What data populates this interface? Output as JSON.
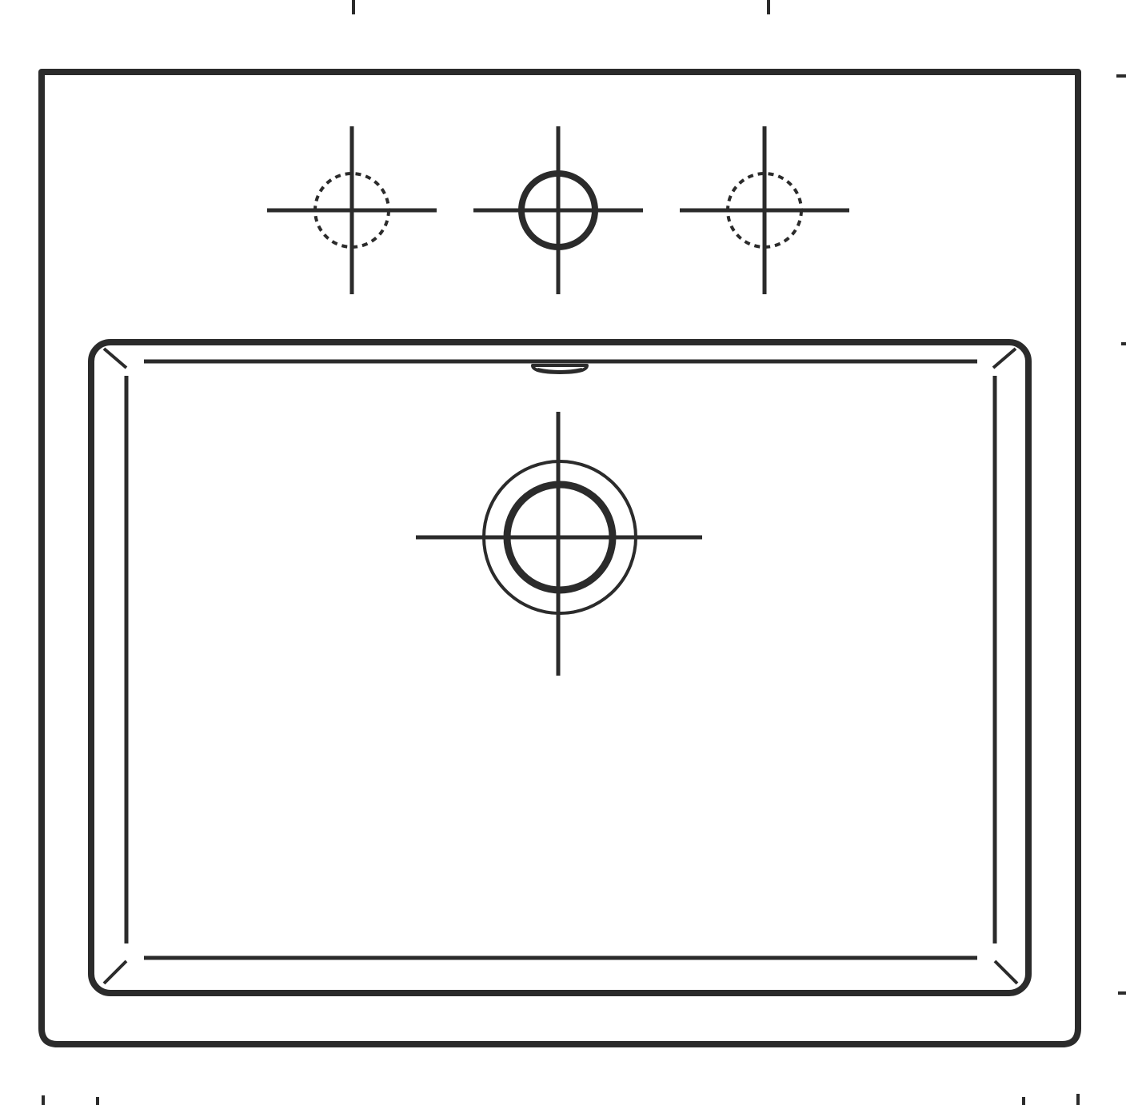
{
  "drawing": {
    "subject": "washbasin-top-view",
    "line_color": "#2b2b2b",
    "background_color": "#ffffff",
    "tap_holes": [
      {
        "position": "left",
        "style": "optional"
      },
      {
        "position": "center",
        "style": "pre-drilled"
      },
      {
        "position": "right",
        "style": "optional"
      }
    ],
    "drain": {
      "style": "double-ring"
    },
    "overflow": {
      "present": true
    }
  }
}
